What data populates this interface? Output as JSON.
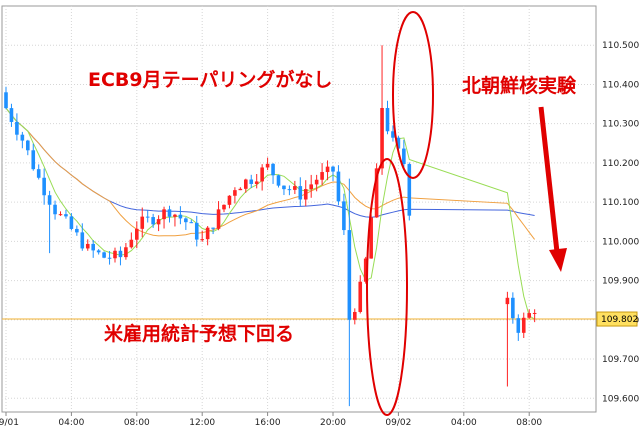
{
  "chart_data": {
    "type": "candlestick",
    "symbol": "",
    "y_ticks": [
      "110.500",
      "110.400",
      "110.300",
      "110.200",
      "110.100",
      "110.000",
      "109.900",
      "109.800",
      "109.700",
      "109.600"
    ],
    "y_tick_values": [
      110.5,
      110.4,
      110.3,
      110.2,
      110.1,
      110.0,
      109.9,
      109.8,
      109.7,
      109.6
    ],
    "ylim": [
      109.565,
      110.6
    ],
    "x_ticks": [
      "09/01",
      "04:00",
      "08:00",
      "12:00",
      "16:00",
      "20:00",
      "09/02",
      "04:00",
      "08:00"
    ],
    "x_tick_slots": [
      0,
      12,
      24,
      36,
      48,
      60,
      72,
      84,
      96
    ],
    "slots_per_hour": 3,
    "last_price": "109.802",
    "last_price_value": 109.802,
    "colors": {
      "up": "#ff2222",
      "down": "#1e90ff",
      "ma_fast": "#99dd55",
      "ma_mid": "#f0a040",
      "ma_slow": "#4466dd",
      "price_line": "#f0b030",
      "annotation": "#e00000",
      "label_bg": "#ffe060"
    },
    "annotations": [
      {
        "text": "ECB9月テーパリングがなし"
      },
      {
        "text": "北朝鮮核実験"
      },
      {
        "text": "米雇用統計予想下回る"
      }
    ],
    "anchors": {
      "path": [
        [
          0,
          110.34
        ],
        [
          3,
          110.26
        ],
        [
          6,
          110.16
        ],
        [
          9,
          110.08
        ],
        [
          12,
          110.03
        ],
        [
          15,
          109.98
        ],
        [
          18,
          109.96
        ],
        [
          21,
          109.96
        ],
        [
          24,
          110.04
        ],
        [
          27,
          110.06
        ],
        [
          30,
          110.08
        ],
        [
          33,
          110.05
        ],
        [
          36,
          110.0
        ],
        [
          39,
          110.07
        ],
        [
          42,
          110.14
        ],
        [
          45,
          110.16
        ],
        [
          48,
          110.19
        ],
        [
          51,
          110.14
        ],
        [
          54,
          110.12
        ],
        [
          57,
          110.16
        ],
        [
          60,
          110.18
        ],
        [
          62,
          110.02
        ],
        [
          64,
          109.81
        ],
        [
          66,
          109.95
        ],
        [
          68,
          110.17
        ],
        [
          69,
          110.33
        ],
        [
          71,
          110.25
        ],
        [
          73,
          110.2
        ],
        [
          74,
          110.08
        ],
        [
          76,
          110.14
        ],
        [
          78,
          110.24
        ],
        [
          80,
          110.27
        ],
        [
          82,
          110.28
        ],
        [
          84,
          110.25
        ],
        [
          86,
          110.27
        ],
        [
          88,
          110.31
        ],
        [
          90,
          110.25
        ],
        [
          92,
          109.84
        ],
        [
          94,
          109.78
        ],
        [
          97,
          109.83
        ]
      ]
    }
  }
}
